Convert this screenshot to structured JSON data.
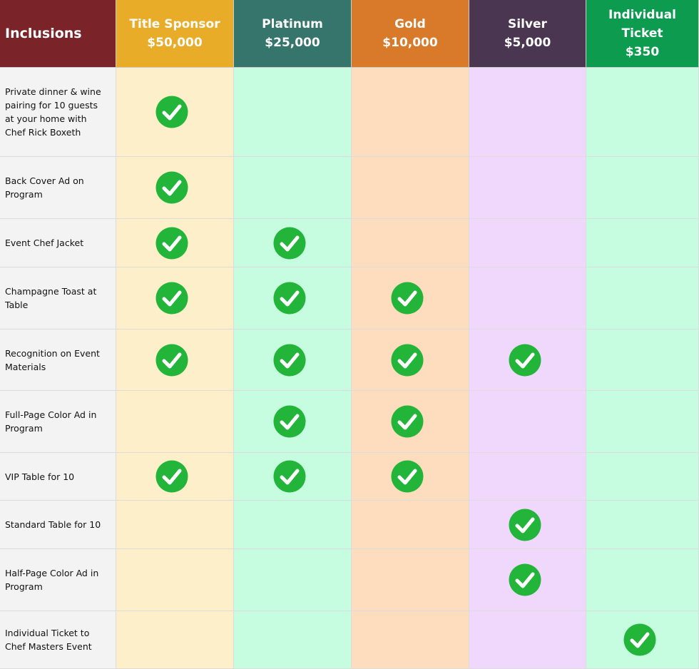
{
  "table": {
    "header": "Inclusions",
    "tiers": [
      {
        "name": "Title Sponsor",
        "price": "$50,000",
        "color": "#e8ac28",
        "tint": "#fdefc9"
      },
      {
        "name": "Platinum",
        "price": "$25,000",
        "color": "#36756b",
        "tint": "#c6fde0"
      },
      {
        "name": "Gold",
        "price": "$10,000",
        "color": "#d87a2a",
        "tint": "#fedcbe"
      },
      {
        "name": "Silver",
        "price": "$5,000",
        "color": "#4a3650",
        "tint": "#f0d8fd"
      },
      {
        "name": "Individual Ticket",
        "price": "$350",
        "color": "#0d9b50",
        "tint": "#c6fde0"
      }
    ],
    "rows": [
      {
        "label": "Private dinner & wine pairing for 10 guests at your home with Chef Rick Boxeth",
        "included": [
          true,
          false,
          false,
          false,
          false
        ]
      },
      {
        "label": "Back Cover Ad on Program",
        "included": [
          true,
          false,
          false,
          false,
          false
        ]
      },
      {
        "label": "Event Chef Jacket",
        "included": [
          true,
          true,
          false,
          false,
          false
        ]
      },
      {
        "label": "Champagne Toast at Table",
        "included": [
          true,
          true,
          true,
          false,
          false
        ]
      },
      {
        "label": "Recognition on Event Materials",
        "included": [
          true,
          true,
          true,
          true,
          false
        ]
      },
      {
        "label": "Full-Page Color Ad in Program",
        "included": [
          false,
          true,
          true,
          false,
          false
        ]
      },
      {
        "label": "VIP Table for 10",
        "included": [
          true,
          true,
          true,
          false,
          false
        ]
      },
      {
        "label": "Standard Table for 10",
        "included": [
          false,
          false,
          false,
          true,
          false
        ]
      },
      {
        "label": "Half-Page Color Ad in Program",
        "included": [
          false,
          false,
          false,
          true,
          false
        ]
      },
      {
        "label": "Individual Ticket to Chef Masters Event",
        "included": [
          false,
          false,
          false,
          false,
          true
        ]
      }
    ]
  }
}
